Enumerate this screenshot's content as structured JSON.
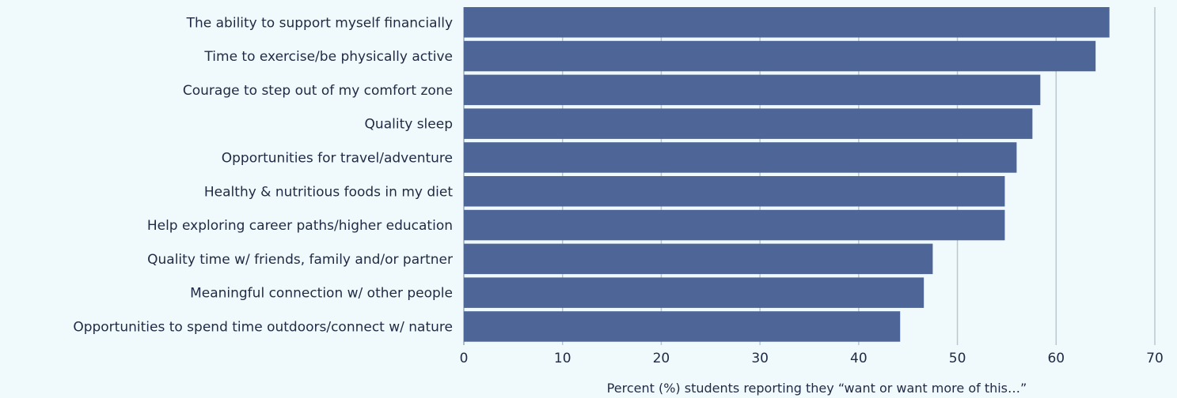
{
  "chart_data": {
    "type": "bar",
    "orientation": "horizontal",
    "categories": [
      "The ability to support myself financially",
      "Time to exercise/be physically active",
      "Courage to step out of my comfort zone",
      "Quality sleep",
      "Opportunities for travel/adventure",
      "Healthy & nutritious foods in my diet",
      "Help exploring career paths/higher education",
      "Quality time w/ friends, family and/or partner",
      "Meaningful connection w/ other people",
      "Opportunities to spend time outdoors/connect w/ nature"
    ],
    "values": [
      65.4,
      64.0,
      58.4,
      57.6,
      56.0,
      54.8,
      54.8,
      47.5,
      46.6,
      44.2
    ],
    "xlabel": "Percent (%) students reporting they “want or want more of this…”",
    "ylabel": "",
    "xlim": [
      0,
      70
    ],
    "xticks": [
      0,
      10,
      20,
      30,
      40,
      50,
      60,
      70
    ],
    "grid": true,
    "legend": "none",
    "bar_color": "#4d6597",
    "background_color": "#f0f9fc",
    "text_color": "#1f2a44"
  }
}
